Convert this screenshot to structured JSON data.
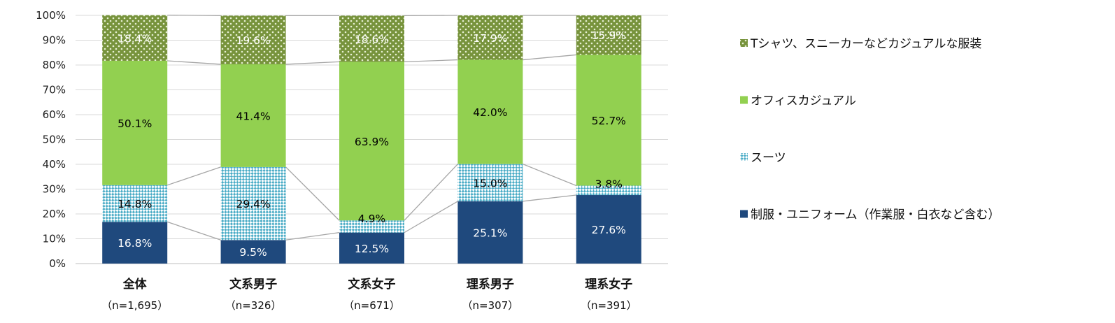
{
  "chart_data": {
    "type": "bar",
    "stacked": true,
    "percent": true,
    "categories": [
      "全体",
      "文系男子",
      "文系女子",
      "理系男子",
      "理系女子"
    ],
    "category_n": [
      "（n=1,695）",
      "（n=326）",
      "（n=671）",
      "（n=307）",
      "（n=391）"
    ],
    "series": [
      {
        "name": "制服・ユニフォーム（作業服・白衣など含む）",
        "values": [
          16.8,
          9.5,
          12.5,
          25.1,
          27.6
        ],
        "labels": [
          "16.8%",
          "9.5%",
          "12.5%",
          "25.1%",
          "27.6%"
        ],
        "color": "#1f497d",
        "pattern": "solid",
        "label_color": "#ffffff"
      },
      {
        "name": "スーツ",
        "values": [
          14.8,
          29.4,
          4.9,
          15.0,
          3.8
        ],
        "labels": [
          "14.8%",
          "29.4%",
          "4.9%",
          "15.0%",
          "3.8%"
        ],
        "color": "#4bacc6",
        "pattern": "diagonal-check",
        "label_color": "#000000"
      },
      {
        "name": "オフィスカジュアル",
        "values": [
          50.1,
          41.4,
          63.9,
          42.0,
          52.7
        ],
        "labels": [
          "50.1%",
          "41.4%",
          "63.9%",
          "42.0%",
          "52.7%"
        ],
        "color": "#92d050",
        "pattern": "solid",
        "label_color": "#000000"
      },
      {
        "name": "Tシャツ、スニーカーなどカジュアルな服装",
        "values": [
          18.4,
          19.6,
          18.6,
          17.9,
          15.9
        ],
        "labels": [
          "18.4%",
          "19.6%",
          "18.6%",
          "17.9%",
          "15.9%"
        ],
        "color": "#77933c",
        "pattern": "dots",
        "label_color": "#ffffff"
      }
    ],
    "y_ticks": [
      "0%",
      "10%",
      "20%",
      "30%",
      "40%",
      "50%",
      "60%",
      "70%",
      "80%",
      "90%",
      "100%"
    ],
    "ylim": [
      0,
      100
    ],
    "grid": true,
    "series_lines": true,
    "legend_position": "right",
    "legend_order": [
      3,
      2,
      1,
      0
    ]
  }
}
